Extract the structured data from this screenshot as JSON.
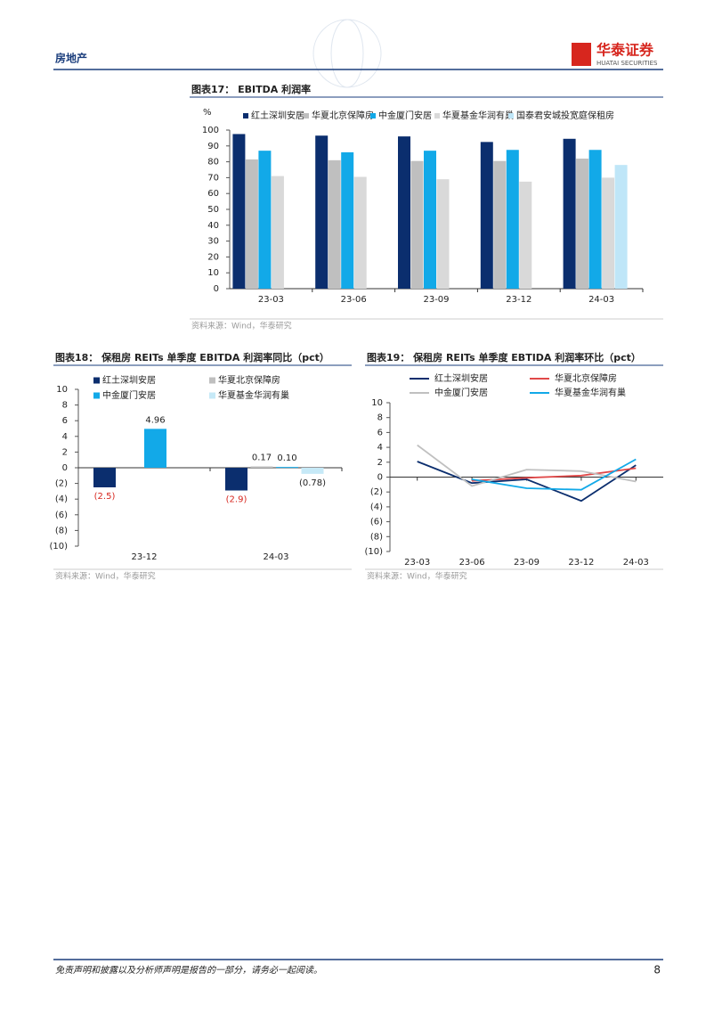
{
  "header": {
    "section": "房地产",
    "logo": "华泰证券",
    "logo_sub": "HUATAI SECURITIES"
  },
  "chart_data": [
    {
      "type": "bar",
      "title": "图表17： EBITDA 利润率",
      "y_label": "%",
      "source": "资料来源：Wind，华泰研究",
      "categories": [
        "23-03",
        "23-06",
        "23-09",
        "23-12",
        "24-03"
      ],
      "series": [
        {
          "name": "红土深圳安居",
          "color": "#0b2e6e",
          "values": [
            97.5,
            96.5,
            96,
            92.5,
            94.5
          ]
        },
        {
          "name": "华夏北京保障房",
          "color": "#bfbfbf",
          "values": [
            81.5,
            81,
            80.5,
            80.5,
            82
          ]
        },
        {
          "name": "中金厦门安居",
          "color": "#12a9e8",
          "values": [
            87,
            86,
            87,
            87.5,
            87.5
          ]
        },
        {
          "name": "华夏基金华润有巢",
          "color": "#d9d9d9",
          "values": [
            71,
            70.5,
            69,
            67.5,
            70
          ]
        },
        {
          "name": "国泰君安城投宽庭保租房",
          "color": "#bfe6f8",
          "values": [
            null,
            null,
            null,
            null,
            78
          ]
        }
      ],
      "ylim": [
        0,
        100
      ],
      "yticks": [
        0,
        10,
        20,
        30,
        40,
        50,
        60,
        70,
        80,
        90,
        100
      ]
    },
    {
      "type": "bar",
      "title": "图表18： 保租房 REITs 单季度 EBITDA 利润率同比（pct）",
      "source": "资料来源：Wind，华泰研究",
      "categories": [
        "23-12",
        "24-03"
      ],
      "series": [
        {
          "name": "红土深圳安居",
          "color": "#0b2e6e",
          "values": [
            -2.5,
            -2.9
          ],
          "value_labels": [
            "(2.5)",
            "(2.9)"
          ]
        },
        {
          "name": "华夏北京保障房",
          "color": "#bfbfbf",
          "values": [
            null,
            0.17
          ],
          "value_labels": [
            null,
            "0.17"
          ]
        },
        {
          "name": "中金厦门安居",
          "color": "#12a9e8",
          "values": [
            4.96,
            0.1
          ],
          "value_labels": [
            "4.96",
            "0.10"
          ]
        },
        {
          "name": "华夏基金华润有巢",
          "color": "#c6e9f7",
          "values": [
            null,
            -0.78
          ],
          "value_labels": [
            null,
            "(0.78)"
          ]
        }
      ],
      "ylim": [
        -10,
        10
      ],
      "yticks": [
        {
          "value": -10,
          "label": "(10)"
        },
        {
          "value": -8,
          "label": "(8)"
        },
        {
          "value": -6,
          "label": "(6)"
        },
        {
          "value": -4,
          "label": "(4)"
        },
        {
          "value": -2,
          "label": "(2)"
        },
        0,
        2,
        4,
        6,
        8,
        10
      ]
    },
    {
      "type": "line",
      "title": "图表19： 保租房 REITs 单季度 EBTIDA 利润率环比（pct）",
      "source": "资料来源：Wind，华泰研究",
      "categories": [
        "23-03",
        "23-06",
        "23-09",
        "23-12",
        "24-03"
      ],
      "series": [
        {
          "name": "红土深圳安居",
          "color": "#0b2e6e",
          "values": [
            2.1,
            -0.8,
            -0.3,
            -3.2,
            1.6
          ]
        },
        {
          "name": "华夏北京保障房",
          "color": "#e04848",
          "values": [
            null,
            -0.5,
            -0.1,
            0.2,
            1.2
          ]
        },
        {
          "name": "中金厦门安居",
          "color": "#c0c0c0",
          "values": [
            4.3,
            -1.2,
            1.0,
            0.8,
            -0.6
          ]
        },
        {
          "name": "华夏基金华润有巢",
          "color": "#12a9e8",
          "values": [
            null,
            -0.3,
            -1.5,
            -1.7,
            2.4
          ]
        }
      ],
      "ylim": [
        -10,
        10
      ],
      "yticks": [
        {
          "value": -10,
          "label": "(10)"
        },
        {
          "value": -8,
          "label": "(8)"
        },
        {
          "value": -6,
          "label": "(6)"
        },
        {
          "value": -4,
          "label": "(4)"
        },
        {
          "value": -2,
          "label": "(2)"
        },
        0,
        2,
        4,
        6,
        8,
        10
      ]
    }
  ],
  "footer": {
    "disclaimer": "免责声明和披露以及分析师声明是报告的一部分，请务必一起阅读。",
    "page": 8
  }
}
